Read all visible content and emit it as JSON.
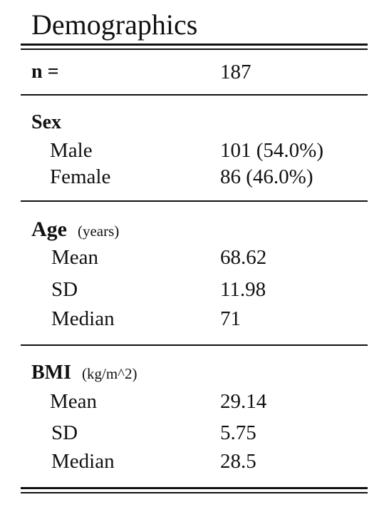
{
  "title": "Demographics",
  "n_row": {
    "label": "n =",
    "value": "187"
  },
  "sex": {
    "heading": "Sex",
    "rows": [
      {
        "label": "Male",
        "value": "101 (54.0%)"
      },
      {
        "label": "Female",
        "value": "86 (46.0%)"
      }
    ]
  },
  "age": {
    "heading": "Age",
    "unit": "(years)",
    "rows": [
      {
        "label": "Mean",
        "value": "68.62"
      },
      {
        "label": "SD",
        "value": "11.98"
      },
      {
        "label": "Median",
        "value": "71"
      }
    ]
  },
  "bmi": {
    "heading": "BMI",
    "unit": "(kg/m^2)",
    "rows": [
      {
        "label": "Mean",
        "value": "29.14"
      },
      {
        "label": "SD",
        "value": "5.75"
      },
      {
        "label": "Median",
        "value": "28.5"
      }
    ]
  }
}
